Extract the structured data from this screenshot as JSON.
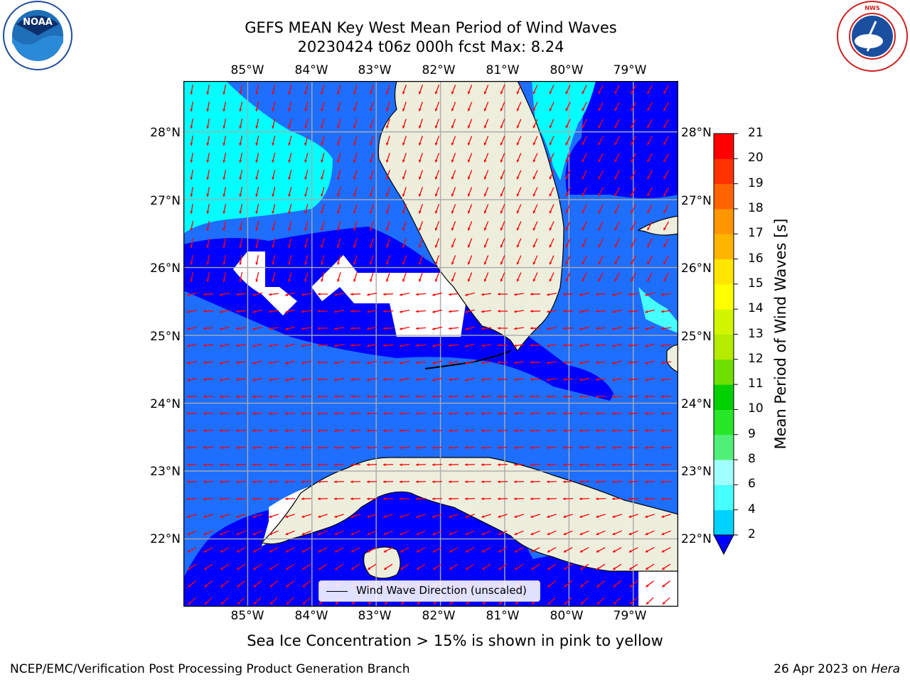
{
  "title": {
    "line1": "GEFS MEAN Key West Mean Period of Wind Waves",
    "line2": "20230424 t06z 000h fcst   Max: 8.24"
  },
  "axes": {
    "lon_labels": [
      "85°W",
      "84°W",
      "83°W",
      "82°W",
      "81°W",
      "80°W",
      "79°W"
    ],
    "lat_labels": [
      "28°N",
      "27°N",
      "26°N",
      "25°N",
      "24°N",
      "23°N",
      "22°N"
    ],
    "lon_range": [
      -86.0,
      -78.3
    ],
    "lat_range": [
      21.0,
      28.75
    ]
  },
  "colorbar": {
    "label": "Mean Period of Wind Waves [s]",
    "ticks": [
      "2",
      "4",
      "6",
      "8",
      "9",
      "10",
      "11",
      "12",
      "13",
      "14",
      "15",
      "16",
      "17",
      "18",
      "19",
      "20",
      "21"
    ],
    "colors": [
      "#1e6eff",
      "#00d2ff",
      "#46ffff",
      "#a0ffff",
      "#50f078",
      "#28e628",
      "#00d000",
      "#6ee000",
      "#b4eb00",
      "#d2f500",
      "#ffff00",
      "#ffe600",
      "#ffb400",
      "#ff9600",
      "#ff6400",
      "#ff3200",
      "#ff0000"
    ],
    "extend_color": "#0000ff"
  },
  "map_colors": {
    "land": "#eeeedd",
    "ocean_2_4": "#1e6eff",
    "ocean_below_2": "#0000ff",
    "ocean_4_6": "#00ffff",
    "ocean_6_8": "#46ffff",
    "no_data": "#ffffff",
    "arrow": "#ff0000",
    "grid": "#aaaaaa"
  },
  "legend": {
    "label": "Wind Wave Direction (unscaled)"
  },
  "footnote": "Sea Ice Concentration > 15% is shown in pink to yellow",
  "credit": "NCEP/EMC/Verification Post Processing Product Generation Branch",
  "date": {
    "text": "26 Apr 2023 on ",
    "machine": "Hera"
  },
  "logos": {
    "noaa": "NOAA",
    "nws": "NATIONAL WEATHER SERVICE"
  }
}
